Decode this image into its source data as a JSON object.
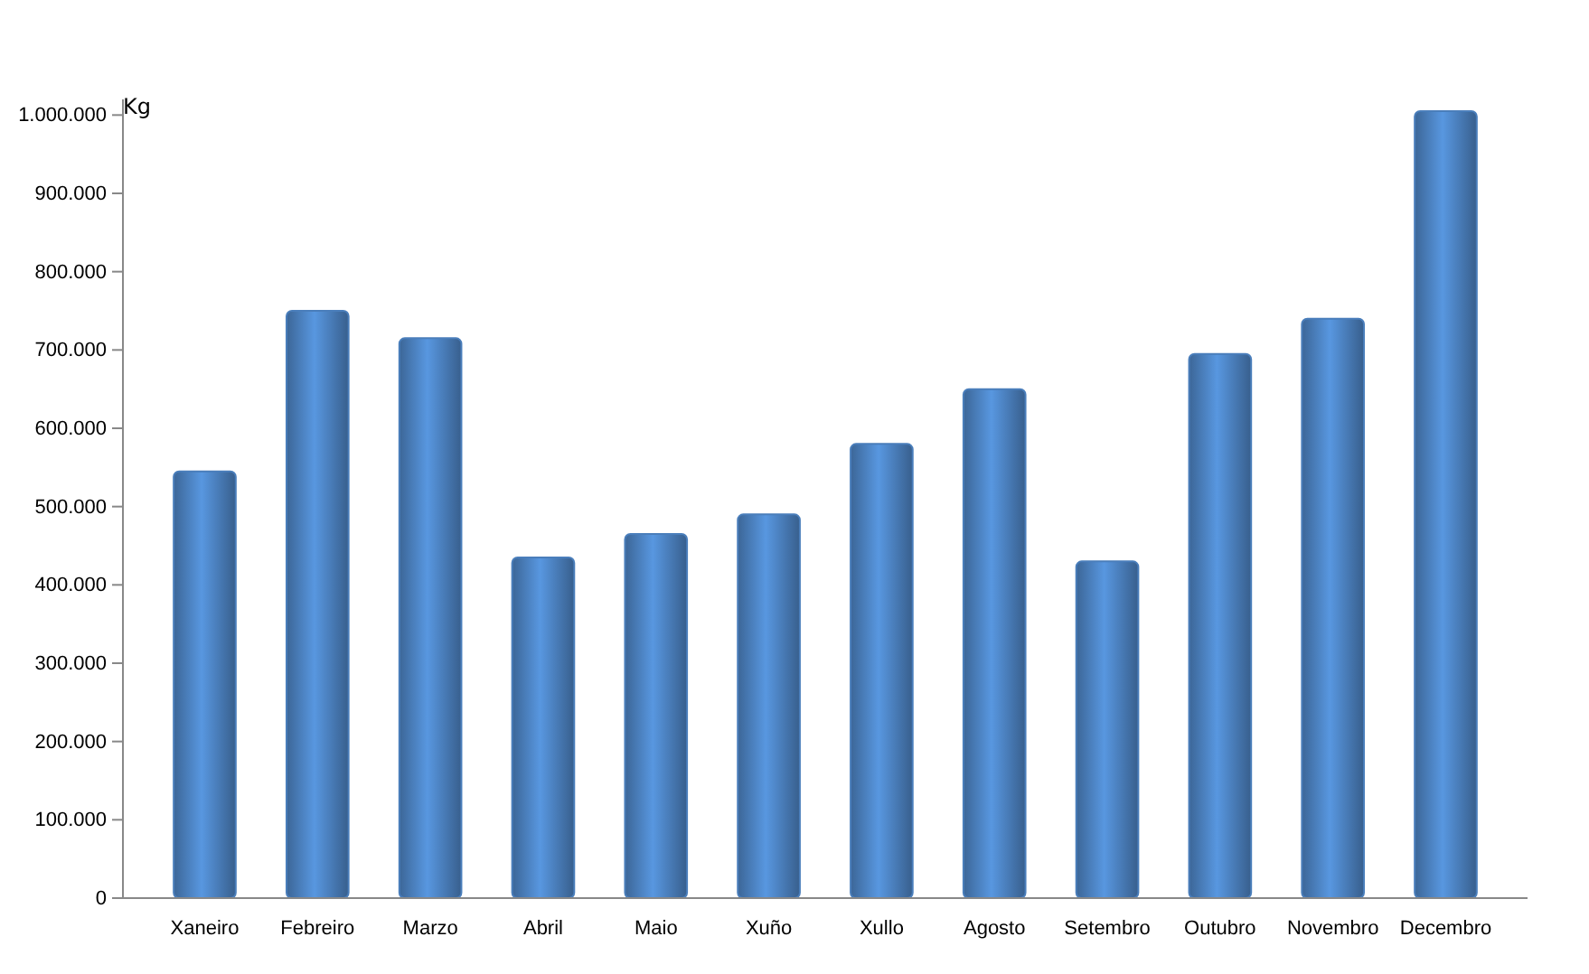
{
  "chart_data": {
    "type": "bar",
    "ylabel": "Kg",
    "categories": [
      "Xaneiro",
      "Febreiro",
      "Marzo",
      "Abril",
      "Maio",
      "Xuño",
      "Xullo",
      "Agosto",
      "Setembro",
      "Outubro",
      "Novembro",
      "Decembro"
    ],
    "values": [
      545000,
      750000,
      715000,
      435000,
      465000,
      490000,
      580000,
      650000,
      430000,
      695000,
      740000,
      1005000
    ],
    "color": "#4a7ebb",
    "ylim": [
      0,
      1020000
    ],
    "yticks": [
      0,
      {
        "value": 100000,
        "label": "100.000"
      },
      {
        "value": 200000,
        "label": "200.000"
      },
      {
        "value": 300000,
        "label": "300.000"
      },
      {
        "value": 400000,
        "label": "400.000"
      },
      {
        "value": 500000,
        "label": "500.000"
      },
      {
        "value": 600000,
        "label": "600.000"
      },
      {
        "value": 700000,
        "label": "700.000"
      },
      {
        "value": 800000,
        "label": "800.000"
      },
      {
        "value": 900000,
        "label": "900.000"
      },
      {
        "value": 1000000,
        "label": "1.000.000"
      }
    ],
    "grid": false
  }
}
